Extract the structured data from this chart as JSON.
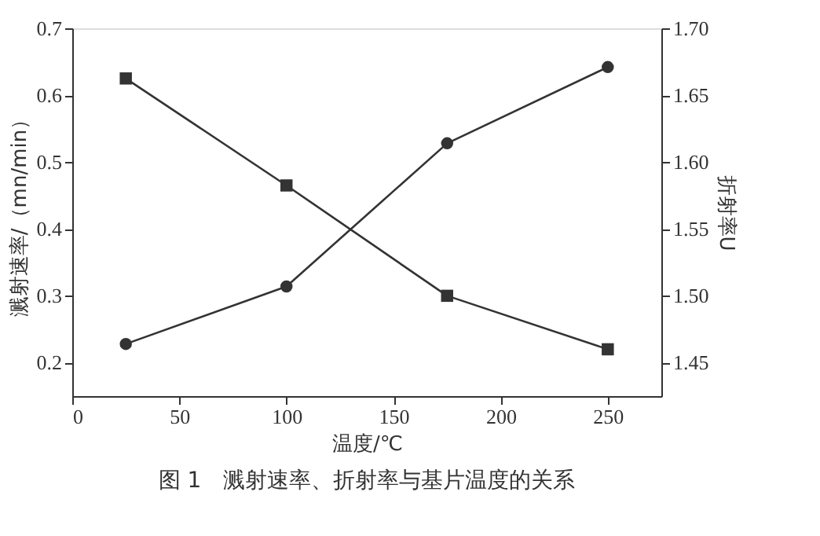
{
  "chart_data": {
    "type": "line",
    "title": "图 1　溅射速率、折射率与基片温度的关系",
    "xlabel": "温度/℃",
    "ylabel": "溅射速率/（mn/min）",
    "y2label": "折射率U",
    "x": [
      25,
      100,
      175,
      250
    ],
    "series": [
      {
        "color": "#333333",
        "marker": "square",
        "values": [
          0.625,
          0.465,
          0.3,
          0.22
        ]
      },
      {
        "color": "#333333",
        "marker": "circle",
        "axis": "y2",
        "values": [
          1.464,
          1.507,
          1.614,
          1.671
        ]
      }
    ],
    "xlim": [
      0,
      275
    ],
    "xticks": [
      0,
      50,
      100,
      150,
      200,
      250
    ],
    "ylim": [
      0.15,
      0.7
    ],
    "yticks": [
      0.2,
      0.3,
      0.4,
      0.5,
      0.6,
      0.7
    ],
    "y2lim": [
      1.425,
      1.7
    ],
    "y2ticks": [
      {
        "value": 1.45,
        "label": "1.45"
      },
      {
        "value": 1.5,
        "label": "1.50"
      },
      {
        "value": 1.55,
        "label": "1.55"
      },
      {
        "value": 1.6,
        "label": "1.60"
      },
      {
        "value": 1.65,
        "label": "1.65"
      },
      {
        "value": 1.7,
        "label": "1.70"
      }
    ],
    "grid": false,
    "line_style": "solid"
  }
}
